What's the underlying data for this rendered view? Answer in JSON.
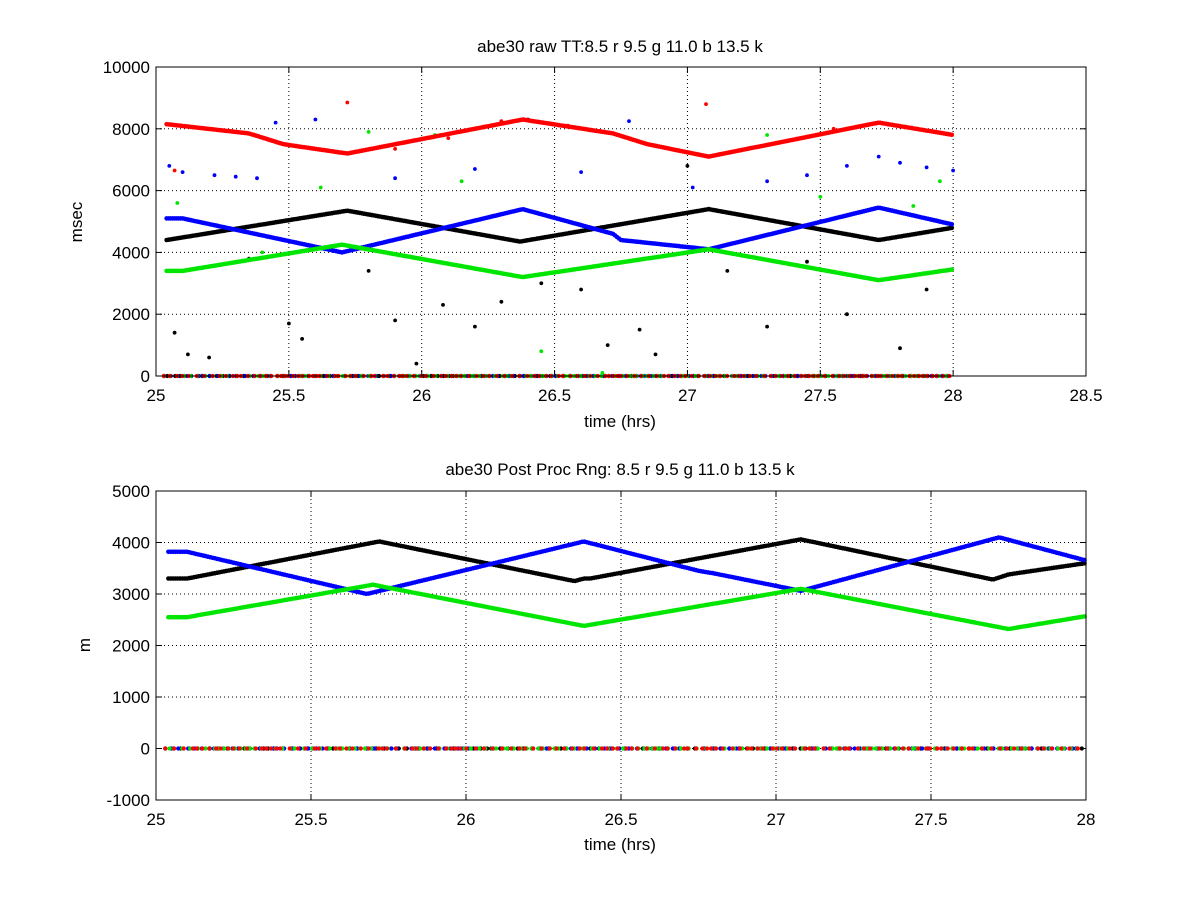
{
  "colors": {
    "r": "#ff0000",
    "g": "#00e600",
    "b": "#0000ff",
    "k": "#000000"
  },
  "chart_data": [
    {
      "type": "scatter",
      "title": "abe30 raw TT:8.5 r  9.5 g  11.0 b  13.5 k",
      "xlabel": "time (hrs)",
      "ylabel": "msec",
      "xlim": [
        25,
        28.5
      ],
      "ylim": [
        0,
        10000
      ],
      "xticks": [
        25,
        25.5,
        26,
        26.5,
        27,
        27.5,
        28,
        28.5
      ],
      "xtick_labels": [
        "25",
        "25.5",
        "26",
        "26.5",
        "27",
        "27.5",
        "28",
        "28.5"
      ],
      "yticks": [
        0,
        2000,
        4000,
        6000,
        8000,
        10000
      ],
      "ytick_labels": [
        "0",
        "2000",
        "4000",
        "6000",
        "8000",
        "10000"
      ],
      "grid": true,
      "data_x_range": [
        25.03,
        28.0
      ],
      "series": [
        {
          "color": "k",
          "x": [
            25.04,
            25.72,
            26.37,
            27.08,
            27.72,
            28.0
          ],
          "y": [
            4400,
            5350,
            4350,
            5400,
            4400,
            4800
          ],
          "zero_line": true,
          "outliers": {
            "x": [
              25.07,
              25.12,
              25.2,
              25.35,
              25.5,
              25.55,
              25.8,
              25.9,
              25.98,
              26.08,
              26.2,
              26.3,
              26.45,
              26.6,
              26.7,
              26.82,
              26.88,
              27.0,
              27.15,
              27.3,
              27.45,
              27.6,
              27.8,
              27.9
            ],
            "y": [
              1400,
              700,
              600,
              3800,
              1700,
              1200,
              3400,
              1800,
              400,
              2300,
              1600,
              2400,
              3000,
              2800,
              1000,
              1500,
              700,
              6800,
              3400,
              1600,
              3700,
              2000,
              900,
              2800
            ]
          }
        },
        {
          "color": "b",
          "x": [
            25.04,
            25.1,
            25.7,
            26.38,
            26.72,
            26.75,
            27.08,
            27.72,
            28.0
          ],
          "y": [
            5100,
            5100,
            4000,
            5400,
            4600,
            4400,
            4100,
            5450,
            4900
          ],
          "zero_line": true,
          "outliers": {
            "x": [
              25.05,
              25.1,
              25.22,
              25.3,
              25.38,
              25.45,
              25.6,
              25.9,
              26.2,
              26.4,
              26.6,
              26.78,
              27.02,
              27.3,
              27.45,
              27.6,
              27.72,
              27.8,
              27.9,
              28.0
            ],
            "y": [
              6800,
              6600,
              6500,
              6450,
              6400,
              8200,
              8300,
              6400,
              6700,
              8300,
              6600,
              8250,
              6100,
              6300,
              6500,
              6800,
              7100,
              6900,
              6750,
              6650
            ]
          }
        },
        {
          "color": "g",
          "x": [
            25.04,
            25.1,
            25.7,
            26.38,
            27.08,
            27.72,
            28.0
          ],
          "y": [
            3400,
            3400,
            4250,
            3200,
            4100,
            3100,
            3450
          ],
          "zero_line": true,
          "outliers": {
            "x": [
              25.08,
              25.4,
              25.62,
              25.8,
              26.05,
              26.15,
              26.45,
              26.68,
              27.3,
              27.5,
              27.85,
              27.95
            ],
            "y": [
              5600,
              4000,
              6100,
              7900,
              7800,
              6300,
              800,
              100,
              7800,
              5800,
              5500,
              6300
            ]
          }
        },
        {
          "color": "r",
          "x": [
            25.04,
            25.35,
            25.48,
            25.72,
            26.38,
            26.72,
            26.85,
            27.08,
            27.72,
            28.0
          ],
          "y": [
            8150,
            7850,
            7500,
            7200,
            8300,
            7850,
            7500,
            7100,
            8200,
            7800
          ],
          "zero_line": true,
          "outliers": {
            "x": [
              25.07,
              25.72,
              25.9,
              26.1,
              26.3,
              26.55,
              27.07,
              27.55
            ],
            "y": [
              6650,
              8850,
              7350,
              7700,
              8250,
              8100,
              8800,
              8000
            ]
          }
        }
      ]
    },
    {
      "type": "scatter",
      "title": "abe30 Post Proc Rng: 8.5 r  9.5 g  11.0 b  13.5  k",
      "xlabel": "time (hrs)",
      "ylabel": "m",
      "xlim": [
        25,
        28
      ],
      "ylim": [
        -1000,
        5000
      ],
      "xticks": [
        25,
        25.5,
        26,
        26.5,
        27,
        27.5,
        28
      ],
      "xtick_labels": [
        "25",
        "25.5",
        "26",
        "26.5",
        "27",
        "27.5",
        "28"
      ],
      "yticks": [
        -1000,
        0,
        1000,
        2000,
        3000,
        4000,
        5000
      ],
      "ytick_labels": [
        "-1000",
        "0",
        "1000",
        "2000",
        "3000",
        "4000",
        "5000"
      ],
      "grid": true,
      "data_x_range": [
        25.03,
        28.0
      ],
      "series": [
        {
          "color": "k",
          "x": [
            25.04,
            25.1,
            25.72,
            26.35,
            26.38,
            26.4,
            27.08,
            27.7,
            27.75,
            28.0
          ],
          "y": [
            3300,
            3300,
            4020,
            3250,
            3300,
            3300,
            4060,
            3280,
            3380,
            3600
          ],
          "zero_line": true
        },
        {
          "color": "b",
          "x": [
            25.04,
            25.1,
            25.68,
            26.38,
            26.75,
            26.8,
            27.08,
            27.72,
            28.0
          ],
          "y": [
            3820,
            3820,
            3000,
            4020,
            3450,
            3400,
            3060,
            4100,
            3650
          ],
          "zero_line": true
        },
        {
          "color": "g",
          "x": [
            25.04,
            25.1,
            25.7,
            26.38,
            27.08,
            27.75,
            28.0
          ],
          "y": [
            2550,
            2550,
            3180,
            2380,
            3100,
            2320,
            2570
          ],
          "zero_line": true
        },
        {
          "color": "r",
          "x": [],
          "y": [],
          "zero_line": true
        }
      ]
    }
  ]
}
